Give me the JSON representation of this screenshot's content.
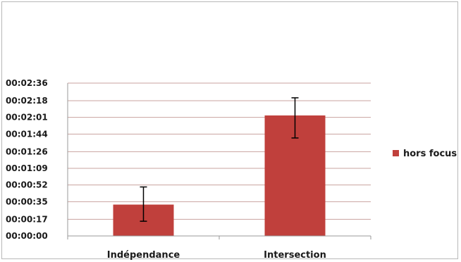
{
  "chart_data": {
    "type": "bar",
    "title": "",
    "xlabel": "",
    "ylabel": "",
    "categories": [
      "Indépendance",
      "Intersection"
    ],
    "series": [
      {
        "name": "hors focus",
        "values": [
          32,
          123
        ],
        "error_low": [
          15,
          100
        ],
        "error_high": [
          50,
          141
        ],
        "color": "#c0403c"
      }
    ],
    "ylim": [
      0,
      156
    ],
    "yticks": [
      0,
      17,
      35,
      52,
      69,
      86,
      104,
      121,
      138,
      156
    ],
    "ytick_labels": [
      "00:00:00",
      "00:00:17",
      "00:00:35",
      "00:00:52",
      "00:01:09",
      "00:01:26",
      "00:01:44",
      "00:02:01",
      "00:02:18",
      "00:02:36"
    ],
    "grid": true,
    "legend_position": "right",
    "colors": {
      "bar": "#c0403c",
      "grid": "#c9a39f",
      "axis": "#9a9a9a",
      "error_bar": "#000000"
    }
  }
}
